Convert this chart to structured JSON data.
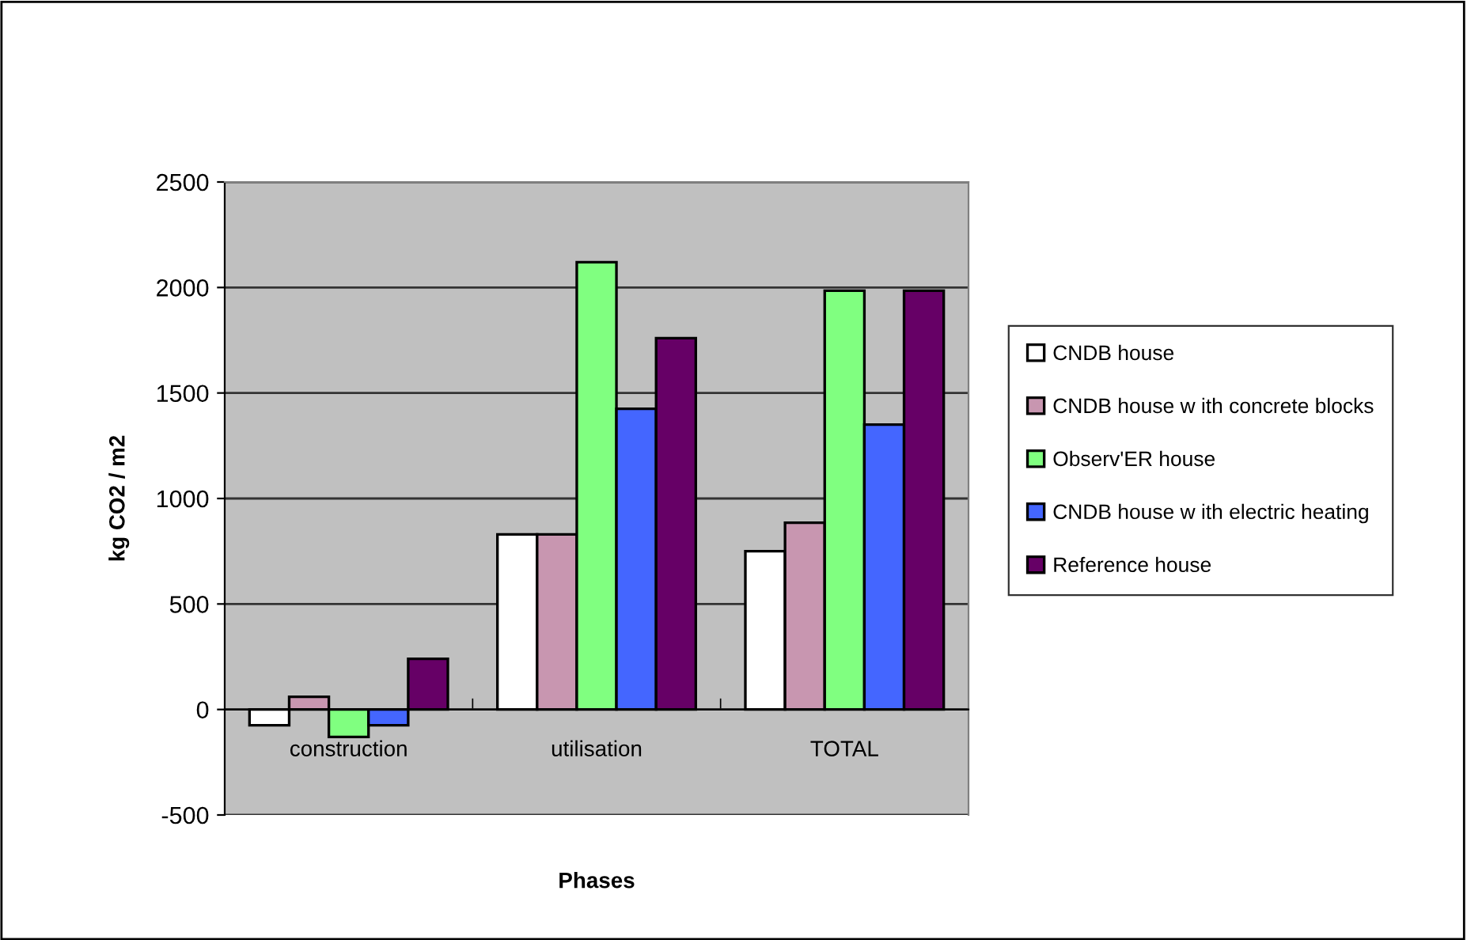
{
  "chart_data": {
    "type": "bar",
    "xlabel": "Phases",
    "ylabel": "kg CO2 / m2",
    "categories": [
      "construction",
      "utilisation",
      "TOTAL"
    ],
    "series": [
      {
        "name": "CNDB house",
        "color": "#ffffff",
        "values": [
          -75,
          830,
          750
        ]
      },
      {
        "name": "CNDB house w ith concrete blocks",
        "color": "#c896b0",
        "values": [
          60,
          830,
          885
        ]
      },
      {
        "name": "Observ'ER house",
        "color": "#80ff80",
        "values": [
          -130,
          2120,
          1985
        ]
      },
      {
        "name": "CNDB house w ith electric heating",
        "color": "#4466ff",
        "values": [
          -75,
          1425,
          1350
        ]
      },
      {
        "name": "Reference house",
        "color": "#660066",
        "values": [
          240,
          1760,
          1985
        ]
      }
    ],
    "ylim": [
      -500,
      2500
    ],
    "yticks": [
      -500,
      0,
      500,
      1000,
      1500,
      2000,
      2500
    ],
    "grid": "y",
    "legend": "right"
  }
}
